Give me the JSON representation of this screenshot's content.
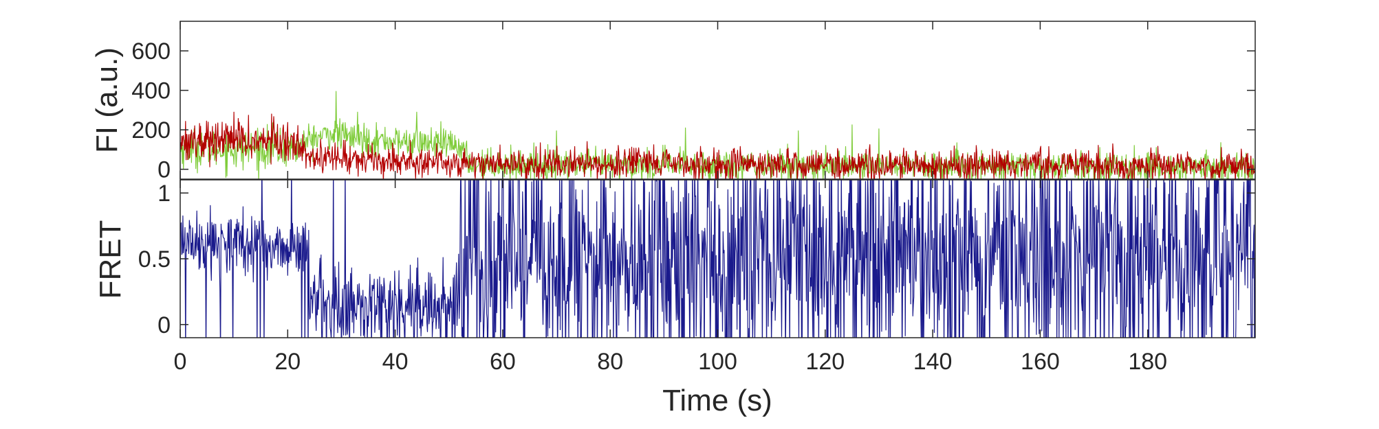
{
  "chart_data": [
    {
      "type": "line",
      "panel": "top",
      "title": "",
      "xlabel": "",
      "ylabel": "FI (a.u.)",
      "xlim": [
        0,
        200
      ],
      "ylim": [
        -50,
        750
      ],
      "yticks": [
        0,
        200,
        400,
        600
      ],
      "ytick_labels": [
        "0",
        "200",
        "400",
        "600"
      ],
      "grid": false,
      "legend": "none",
      "noise": [
        {
          "t0": 0,
          "t1": 22,
          "sd": 50
        },
        {
          "t0": 22,
          "t1": 200,
          "sd": 38
        }
      ],
      "series": [
        {
          "color": "#7fcc3a",
          "anchors": [
            [
              0,
              110
            ],
            [
              10,
              100
            ],
            [
              22,
              110
            ],
            [
              24,
              150
            ],
            [
              28,
              180
            ],
            [
              32,
              160
            ],
            [
              40,
              140
            ],
            [
              48,
              130
            ],
            [
              52,
              120
            ],
            [
              54,
              30
            ],
            [
              60,
              20
            ],
            [
              80,
              20
            ],
            [
              100,
              20
            ],
            [
              120,
              15
            ],
            [
              140,
              15
            ],
            [
              160,
              10
            ],
            [
              180,
              10
            ],
            [
              200,
              5
            ]
          ],
          "peaks": [
            [
              29,
              395
            ],
            [
              33,
              290
            ],
            [
              44,
              290
            ],
            [
              70,
              195
            ],
            [
              94,
              210
            ],
            [
              115,
              195
            ],
            [
              125,
              225
            ],
            [
              130,
              205
            ]
          ]
        },
        {
          "color": "#b30000",
          "anchors": [
            [
              0,
              150
            ],
            [
              5,
              145
            ],
            [
              10,
              150
            ],
            [
              15,
              140
            ],
            [
              20,
              130
            ],
            [
              23,
              120
            ],
            [
              24,
              70
            ],
            [
              30,
              55
            ],
            [
              40,
              45
            ],
            [
              50,
              35
            ],
            [
              60,
              30
            ],
            [
              80,
              28
            ],
            [
              100,
              25
            ],
            [
              120,
              25
            ],
            [
              140,
              22
            ],
            [
              160,
              20
            ],
            [
              180,
              18
            ],
            [
              200,
              15
            ]
          ],
          "peaks": [
            [
              10,
              290
            ],
            [
              17,
              280
            ]
          ]
        }
      ]
    },
    {
      "type": "line",
      "panel": "bottom",
      "title": "",
      "xlabel": "Time (s)",
      "ylabel": "FRET",
      "xlim": [
        0,
        200
      ],
      "ylim": [
        -0.1,
        1.1
      ],
      "xticks": [
        0,
        20,
        40,
        60,
        80,
        100,
        120,
        140,
        160,
        180
      ],
      "xtick_labels": [
        "0",
        "20",
        "40",
        "60",
        "80",
        "100",
        "120",
        "140",
        "160",
        "180"
      ],
      "yticks": [
        0,
        0.5,
        1
      ],
      "ytick_labels": [
        "0",
        "0.5",
        "1"
      ],
      "grid": false,
      "legend": "none",
      "series": [
        {
          "color": "#1a1a8c",
          "segments": [
            {
              "t0": 0,
              "t1": 24,
              "mean": 0.6,
              "sd": 0.12,
              "spike_prob": 0.07
            },
            {
              "t0": 24,
              "t1": 52,
              "mean": 0.15,
              "sd": 0.17,
              "spike_prob": 0.05
            },
            {
              "t0": 52,
              "t1": 200,
              "mean": 0.5,
              "sd": 0.38,
              "spike_prob": 0.15
            }
          ]
        }
      ]
    }
  ]
}
